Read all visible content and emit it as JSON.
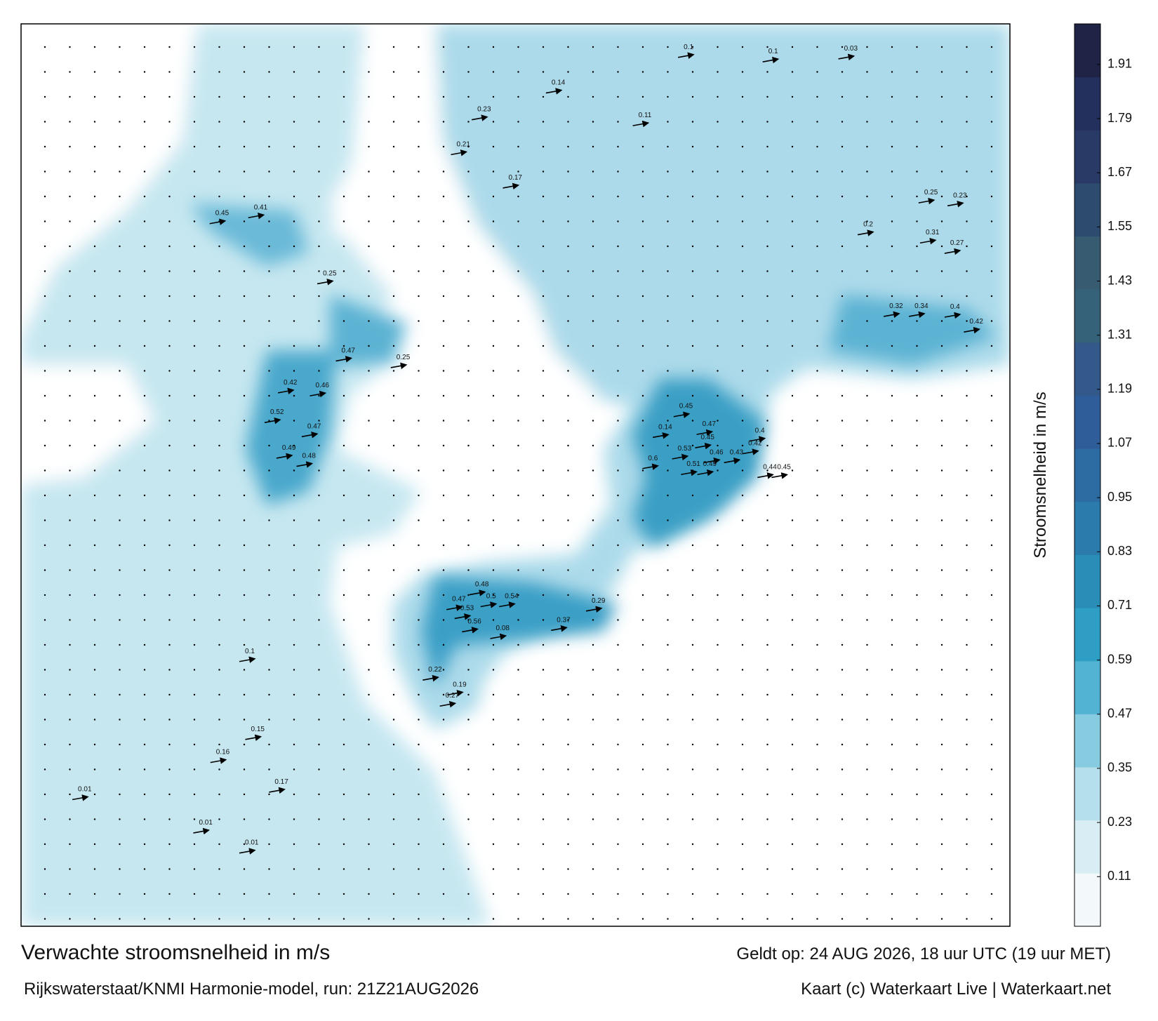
{
  "header": {
    "title": "Verwachte stroomsnelheid in m/s",
    "subtitle": "Rijkswaterstaat/KNMI Harmonie-model, run: 21Z21AUG2026",
    "valid": "Geldt op: 24 AUG 2026, 18 uur UTC (19 uur MET)",
    "credit": "Kaart (c) Waterkaart Live | Waterkaart.net"
  },
  "colorbar": {
    "label": "Stroomsnelheid in m/s",
    "lim": [
      0,
      2
    ],
    "ticks": [
      0.11,
      0.23,
      0.35,
      0.47,
      0.59,
      0.71,
      0.83,
      0.95,
      1.07,
      1.19,
      1.31,
      1.43,
      1.55,
      1.67,
      1.79,
      1.91
    ],
    "colors": [
      "#f3f9fb",
      "#d9eef4",
      "#b5dfec",
      "#86cbe0",
      "#53b3d2",
      "#2f9ec4",
      "#2a8db8",
      "#2b7cac",
      "#2d6ca3",
      "#2f5d99",
      "#33588a",
      "#366279",
      "#375c72",
      "#2d4a6f",
      "#293a66",
      "#232f5c",
      "#1f2446"
    ]
  },
  "map": {
    "labels": [
      0.47,
      0.53,
      0.56,
      0.37,
      0.29,
      0.54,
      0.5,
      0.48,
      0.14,
      0.45,
      0.47,
      0.45,
      0.53,
      0.46,
      0.43,
      0.6,
      0.51,
      0.49,
      0.42,
      0.4,
      0.44,
      0.45,
      0.32,
      0.34,
      0.4,
      0.42,
      0.31,
      0.27,
      0.25,
      0.23,
      0.2,
      0.42,
      0.46,
      0.52,
      0.47,
      0.49,
      0.48,
      0.47,
      0.25,
      0.45,
      0.41,
      0.25,
      0.23,
      0.21,
      0.17,
      0.14,
      0.11,
      0.1,
      0.1,
      0.03,
      0.16,
      0.15,
      0.17,
      0.1,
      0.19,
      0.27,
      0.22,
      0.08,
      0.01,
      0.01,
      0.01
    ]
  }
}
